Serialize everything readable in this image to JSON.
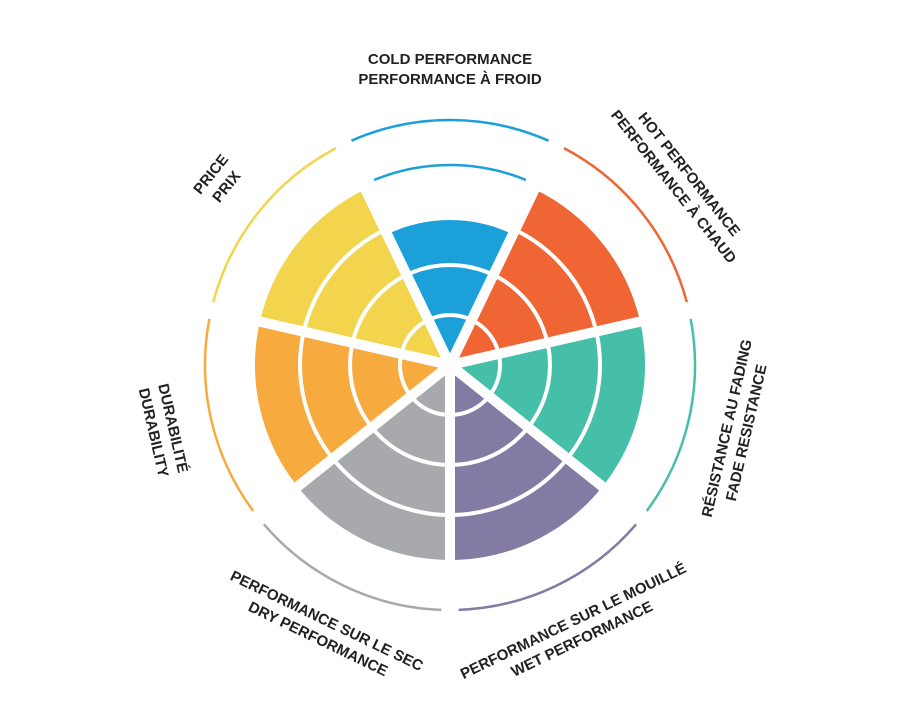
{
  "chart_data": {
    "type": "polar",
    "categories": [
      [
        "COLD PERFORMANCE",
        "PERFORMANCE À FROID"
      ],
      [
        "HOT PERFORMANCE",
        "PERFORMANCE À CHAUD"
      ],
      [
        "RÉSISTANCE AU FADING",
        "FADE RESISTANCE"
      ],
      [
        "PERFORMANCE SUR LE MOUILLÉ",
        "WET PERFORMANCE"
      ],
      [
        "PERFORMANCE SUR LE SEC",
        "DRY PERFORMANCE"
      ],
      [
        "DURABILITÉ",
        "DURABILITY"
      ],
      [
        "PRICE",
        "PRIX"
      ]
    ],
    "values": [
      3,
      4,
      4,
      4,
      4,
      4,
      4
    ],
    "colors": [
      "#1ba0da",
      "#ef6534",
      "#46bfa9",
      "#837ba4",
      "#a8a9ac",
      "#f7aa3d",
      "#f2d54c"
    ],
    "rlim": [
      0,
      4
    ],
    "rticks": [
      1,
      2,
      3
    ],
    "grid": true
  }
}
